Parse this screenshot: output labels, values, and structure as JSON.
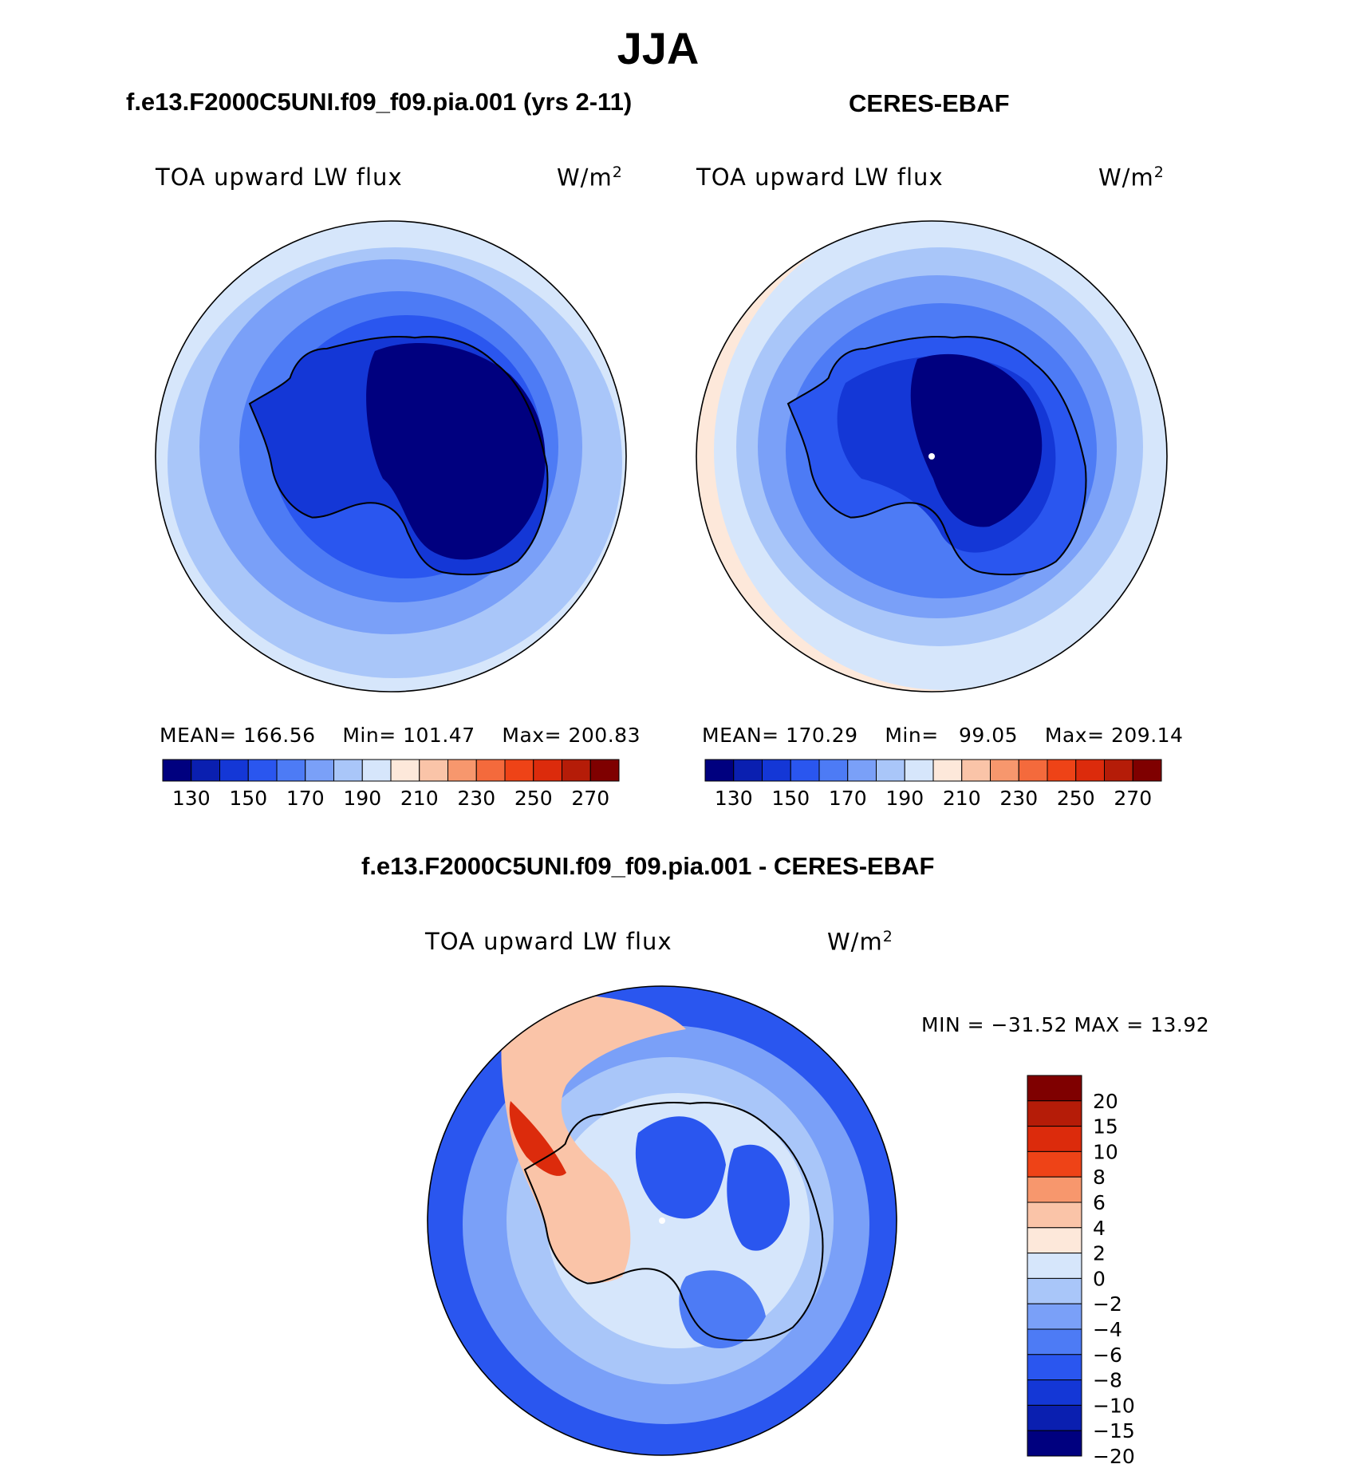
{
  "title": "JJA",
  "panels": {
    "model": {
      "title": "f.e13.F2000C5UNI.f09_f09.pia.001 (yrs 2-11)",
      "variable": "TOA upward LW flux",
      "units": "W/m",
      "units_exp": "2",
      "stats": {
        "mean_label": "MEAN=",
        "mean": "166.56",
        "min_label": "Min=",
        "min": "101.47",
        "max_label": "Max=",
        "max": "200.83"
      }
    },
    "obs": {
      "title": "CERES-EBAF",
      "variable": "TOA upward LW flux",
      "units": "W/m",
      "units_exp": "2",
      "stats": {
        "mean_label": "MEAN=",
        "mean": "170.29",
        "min_label": "Min=",
        "min": "99.05",
        "max_label": "Max=",
        "max": "209.14"
      }
    },
    "diff": {
      "title": "f.e13.F2000C5UNI.f09_f09.pia.001 - CERES-EBAF",
      "variable": "TOA upward LW flux",
      "units": "W/m",
      "units_exp": "2",
      "minmax": "MIN = −31.52 MAX =   13.92"
    }
  },
  "chart_data": [
    {
      "type": "heatmap",
      "projection": "south-polar-stereographic",
      "season": "JJA",
      "title": "f.e13.F2000C5UNI.f09_f09.pia.001 (yrs 2-11)",
      "variable": "TOA upward LW flux",
      "units": "W/m2",
      "mean": 166.56,
      "min": 101.47,
      "max": 200.83,
      "contour_levels": [
        130,
        140,
        150,
        160,
        170,
        180,
        190,
        200,
        210,
        220,
        230,
        240,
        250,
        260,
        270
      ],
      "colorbar_tick_labels": [
        "130",
        "150",
        "170",
        "190",
        "210",
        "230",
        "250",
        "270"
      ],
      "colors": [
        "#00007f",
        "#0a1fb0",
        "#1437d6",
        "#2a56ef",
        "#4d7bf5",
        "#7aa0f8",
        "#a9c6f9",
        "#d6e6fb",
        "#fde8da",
        "#fac4a8",
        "#f7976d",
        "#f46a3c",
        "#ee4317",
        "#dc2b0c",
        "#b51c08",
        "#7f0000"
      ]
    },
    {
      "type": "heatmap",
      "projection": "south-polar-stereographic",
      "season": "JJA",
      "title": "CERES-EBAF",
      "variable": "TOA upward LW flux",
      "units": "W/m2",
      "mean": 170.29,
      "min": 99.05,
      "max": 209.14,
      "contour_levels": [
        130,
        140,
        150,
        160,
        170,
        180,
        190,
        200,
        210,
        220,
        230,
        240,
        250,
        260,
        270
      ],
      "colorbar_tick_labels": [
        "130",
        "150",
        "170",
        "190",
        "210",
        "230",
        "250",
        "270"
      ],
      "colors": [
        "#00007f",
        "#0a1fb0",
        "#1437d6",
        "#2a56ef",
        "#4d7bf5",
        "#7aa0f8",
        "#a9c6f9",
        "#d6e6fb",
        "#fde8da",
        "#fac4a8",
        "#f7976d",
        "#f46a3c",
        "#ee4317",
        "#dc2b0c",
        "#b51c08",
        "#7f0000"
      ]
    },
    {
      "type": "heatmap",
      "projection": "south-polar-stereographic",
      "season": "JJA",
      "title": "f.e13.F2000C5UNI.f09_f09.pia.001 - CERES-EBAF",
      "variable": "TOA upward LW flux",
      "units": "W/m2",
      "min": -31.52,
      "max": 13.92,
      "contour_levels": [
        -20,
        -15,
        -10,
        -8,
        -6,
        -4,
        -2,
        0,
        2,
        4,
        6,
        8,
        10,
        15,
        20
      ],
      "colorbar_tick_labels": [
        "20",
        "15",
        "10",
        "8",
        "6",
        "4",
        "2",
        "0",
        "−2",
        "−4",
        "−6",
        "−8",
        "−10",
        "−15",
        "−20"
      ],
      "colors": [
        "#7f0000",
        "#b51c08",
        "#dc2b0c",
        "#ee4317",
        "#f7976d",
        "#fac4a8",
        "#fde8da",
        "#d6e6fb",
        "#a9c6f9",
        "#7aa0f8",
        "#4d7bf5",
        "#2a56ef",
        "#1437d6",
        "#0a1fb0",
        "#00007f",
        "#00007f"
      ]
    }
  ]
}
